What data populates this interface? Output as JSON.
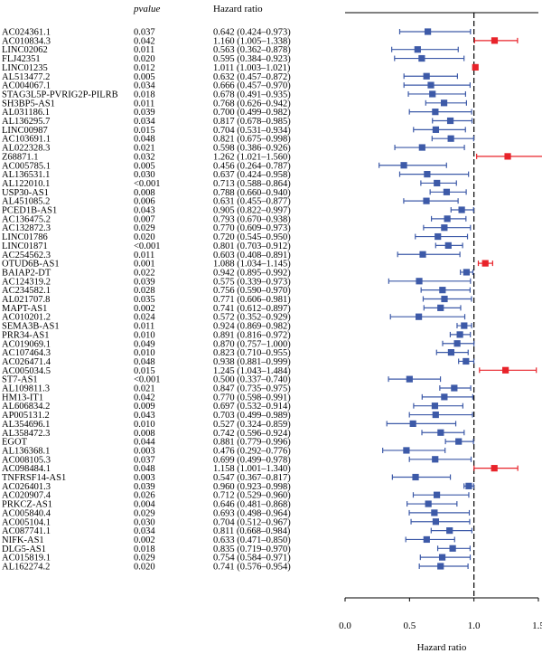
{
  "chart_data": {
    "type": "forest",
    "column_headers": {
      "pvalue": "pvalue",
      "hazard_ratio": "Hazard ratio"
    },
    "xlabel": "Hazard ratio",
    "xlim": [
      0.0,
      1.5
    ],
    "xticks": [
      "0.0",
      "0.5",
      "1.0",
      "1.5"
    ],
    "reference_line": 1.0,
    "colors": {
      "protective": "#3d5aa8",
      "risk": "#e8232a",
      "reference": "#000000"
    },
    "rows": [
      {
        "gene": "AC024361.1",
        "pvalue": "0.037",
        "hr_text": "0.642 (0.424–0.973)",
        "hr": 0.642,
        "low": 0.424,
        "high": 0.973
      },
      {
        "gene": "AC010834.3",
        "pvalue": "0.042",
        "hr_text": "1.160 (1.005–1.338)",
        "hr": 1.16,
        "low": 1.005,
        "high": 1.338
      },
      {
        "gene": "LINC02062",
        "pvalue": "0.011",
        "hr_text": "0.563 (0.362–0.878)",
        "hr": 0.563,
        "low": 0.362,
        "high": 0.878
      },
      {
        "gene": "FLJ42351",
        "pvalue": "0.020",
        "hr_text": "0.595 (0.384–0.923)",
        "hr": 0.595,
        "low": 0.384,
        "high": 0.923
      },
      {
        "gene": "LINC01235",
        "pvalue": "0.012",
        "hr_text": "1.011 (1.003–1.021)",
        "hr": 1.011,
        "low": 1.003,
        "high": 1.021
      },
      {
        "gene": "AL513477.2",
        "pvalue": "0.005",
        "hr_text": "0.632 (0.457–0.872)",
        "hr": 0.632,
        "low": 0.457,
        "high": 0.872
      },
      {
        "gene": "AC004067.1",
        "pvalue": "0.034",
        "hr_text": "0.666 (0.457–0.970)",
        "hr": 0.666,
        "low": 0.457,
        "high": 0.97
      },
      {
        "gene": "STAG3L5P-PVRIG2P-PILRB",
        "pvalue": "0.018",
        "hr_text": "0.678 (0.491–0.935)",
        "hr": 0.678,
        "low": 0.491,
        "high": 0.935
      },
      {
        "gene": "SH3BP5-AS1",
        "pvalue": "0.011",
        "hr_text": "0.768 (0.626–0.942)",
        "hr": 0.768,
        "low": 0.626,
        "high": 0.942
      },
      {
        "gene": "AL031186.1",
        "pvalue": "0.039",
        "hr_text": "0.700 (0.499–0.982)",
        "hr": 0.7,
        "low": 0.499,
        "high": 0.982
      },
      {
        "gene": "AL136295.7",
        "pvalue": "0.034",
        "hr_text": "0.817 (0.678–0.985)",
        "hr": 0.817,
        "low": 0.678,
        "high": 0.985
      },
      {
        "gene": "LINC00987",
        "pvalue": "0.015",
        "hr_text": "0.704 (0.531–0.934)",
        "hr": 0.704,
        "low": 0.531,
        "high": 0.934
      },
      {
        "gene": "AC103691.1",
        "pvalue": "0.048",
        "hr_text": "0.821 (0.675–0.998)",
        "hr": 0.821,
        "low": 0.675,
        "high": 0.998
      },
      {
        "gene": "AL022328.3",
        "pvalue": "0.021",
        "hr_text": "0.598 (0.386–0.926)",
        "hr": 0.598,
        "low": 0.386,
        "high": 0.926
      },
      {
        "gene": "Z68871.1",
        "pvalue": "0.032",
        "hr_text": "1.262 (1.021–1.560)",
        "hr": 1.262,
        "low": 1.021,
        "high": 1.56
      },
      {
        "gene": "AC005785.1",
        "pvalue": "0.005",
        "hr_text": "0.456 (0.264–0.787)",
        "hr": 0.456,
        "low": 0.264,
        "high": 0.787
      },
      {
        "gene": "AL136531.1",
        "pvalue": "0.030",
        "hr_text": "0.637 (0.424–0.958)",
        "hr": 0.637,
        "low": 0.424,
        "high": 0.958
      },
      {
        "gene": "AL122010.1",
        "pvalue": "<0.001",
        "hr_text": "0.713 (0.588–0.864)",
        "hr": 0.713,
        "low": 0.588,
        "high": 0.864
      },
      {
        "gene": "USP30-AS1",
        "pvalue": "0.008",
        "hr_text": "0.788 (0.660–0.940)",
        "hr": 0.788,
        "low": 0.66,
        "high": 0.94
      },
      {
        "gene": "AL451085.2",
        "pvalue": "0.006",
        "hr_text": "0.631 (0.455–0.877)",
        "hr": 0.631,
        "low": 0.455,
        "high": 0.877
      },
      {
        "gene": "PCED1B-AS1",
        "pvalue": "0.043",
        "hr_text": "0.905 (0.822–0.997)",
        "hr": 0.905,
        "low": 0.822,
        "high": 0.997
      },
      {
        "gene": "AC136475.2",
        "pvalue": "0.007",
        "hr_text": "0.793 (0.670–0.938)",
        "hr": 0.793,
        "low": 0.67,
        "high": 0.938
      },
      {
        "gene": "AC132872.3",
        "pvalue": "0.029",
        "hr_text": "0.770 (0.609–0.973)",
        "hr": 0.77,
        "low": 0.609,
        "high": 0.973
      },
      {
        "gene": "LINC01786",
        "pvalue": "0.020",
        "hr_text": "0.720 (0.545–0.950)",
        "hr": 0.72,
        "low": 0.545,
        "high": 0.95
      },
      {
        "gene": "LINC01871",
        "pvalue": "<0.001",
        "hr_text": "0.801 (0.703–0.912)",
        "hr": 0.801,
        "low": 0.703,
        "high": 0.912
      },
      {
        "gene": "AC254562.3",
        "pvalue": "0.011",
        "hr_text": "0.603 (0.408–0.891)",
        "hr": 0.603,
        "low": 0.408,
        "high": 0.891
      },
      {
        "gene": "OTUD6B-AS1",
        "pvalue": "0.001",
        "hr_text": "1.088 (1.034–1.145)",
        "hr": 1.088,
        "low": 1.034,
        "high": 1.145
      },
      {
        "gene": "BAIAP2-DT",
        "pvalue": "0.022",
        "hr_text": "0.942 (0.895–0.992)",
        "hr": 0.942,
        "low": 0.895,
        "high": 0.992
      },
      {
        "gene": "AC124319.2",
        "pvalue": "0.039",
        "hr_text": "0.575 (0.339–0.973)",
        "hr": 0.575,
        "low": 0.339,
        "high": 0.973
      },
      {
        "gene": "AC234582.1",
        "pvalue": "0.028",
        "hr_text": "0.756 (0.590–0.970)",
        "hr": 0.756,
        "low": 0.59,
        "high": 0.97
      },
      {
        "gene": "AL021707.8",
        "pvalue": "0.035",
        "hr_text": "0.771 (0.606–0.981)",
        "hr": 0.771,
        "low": 0.606,
        "high": 0.981
      },
      {
        "gene": "MAPT-AS1",
        "pvalue": "0.002",
        "hr_text": "0.741 (0.612–0.897)",
        "hr": 0.741,
        "low": 0.612,
        "high": 0.897
      },
      {
        "gene": "AC010201.2",
        "pvalue": "0.024",
        "hr_text": "0.572 (0.352–0.929)",
        "hr": 0.572,
        "low": 0.352,
        "high": 0.929
      },
      {
        "gene": "SEMA3B-AS1",
        "pvalue": "0.011",
        "hr_text": "0.924 (0.869–0.982)",
        "hr": 0.924,
        "low": 0.869,
        "high": 0.982
      },
      {
        "gene": "PRR34-AS1",
        "pvalue": "0.010",
        "hr_text": "0.891 (0.816–0.972)",
        "hr": 0.891,
        "low": 0.816,
        "high": 0.972
      },
      {
        "gene": "AC019069.1",
        "pvalue": "0.049",
        "hr_text": "0.870 (0.757–1.000)",
        "hr": 0.87,
        "low": 0.757,
        "high": 1.0
      },
      {
        "gene": "AC107464.3",
        "pvalue": "0.010",
        "hr_text": "0.823 (0.710–0.955)",
        "hr": 0.823,
        "low": 0.71,
        "high": 0.955
      },
      {
        "gene": "AC026471.4",
        "pvalue": "0.048",
        "hr_text": "0.938 (0.881–0.999)",
        "hr": 0.938,
        "low": 0.881,
        "high": 0.999
      },
      {
        "gene": "AC005034.5",
        "pvalue": "0.015",
        "hr_text": "1.245 (1.043–1.484)",
        "hr": 1.245,
        "low": 1.043,
        "high": 1.484
      },
      {
        "gene": "ST7-AS1",
        "pvalue": "<0.001",
        "hr_text": "0.500 (0.337–0.740)",
        "hr": 0.5,
        "low": 0.337,
        "high": 0.74
      },
      {
        "gene": "AL109811.3",
        "pvalue": "0.021",
        "hr_text": "0.847 (0.735–0.975)",
        "hr": 0.847,
        "low": 0.735,
        "high": 0.975
      },
      {
        "gene": "HM13-IT1",
        "pvalue": "0.042",
        "hr_text": "0.770 (0.598–0.991)",
        "hr": 0.77,
        "low": 0.598,
        "high": 0.991
      },
      {
        "gene": "AL606834.2",
        "pvalue": "0.009",
        "hr_text": "0.697 (0.532–0.914)",
        "hr": 0.697,
        "low": 0.532,
        "high": 0.914
      },
      {
        "gene": "AP005131.2",
        "pvalue": "0.043",
        "hr_text": "0.703 (0.499–0.989)",
        "hr": 0.703,
        "low": 0.499,
        "high": 0.989
      },
      {
        "gene": "AL354696.1",
        "pvalue": "0.010",
        "hr_text": "0.527 (0.324–0.859)",
        "hr": 0.527,
        "low": 0.324,
        "high": 0.859
      },
      {
        "gene": "AL358472.3",
        "pvalue": "0.008",
        "hr_text": "0.742 (0.596–0.924)",
        "hr": 0.742,
        "low": 0.596,
        "high": 0.924
      },
      {
        "gene": "EGOT",
        "pvalue": "0.044",
        "hr_text": "0.881 (0.779–0.996)",
        "hr": 0.881,
        "low": 0.779,
        "high": 0.996
      },
      {
        "gene": "AL136368.1",
        "pvalue": "0.003",
        "hr_text": "0.476 (0.292–0.776)",
        "hr": 0.476,
        "low": 0.292,
        "high": 0.776
      },
      {
        "gene": "AC008105.3",
        "pvalue": "0.037",
        "hr_text": "0.699 (0.499–0.978)",
        "hr": 0.699,
        "low": 0.499,
        "high": 0.978
      },
      {
        "gene": "AC098484.1",
        "pvalue": "0.048",
        "hr_text": "1.158 (1.001–1.340)",
        "hr": 1.158,
        "low": 1.001,
        "high": 1.34
      },
      {
        "gene": "TNFRSF14-AS1",
        "pvalue": "0.003",
        "hr_text": "0.547 (0.367–0.817)",
        "hr": 0.547,
        "low": 0.367,
        "high": 0.817
      },
      {
        "gene": "AC026401.3",
        "pvalue": "0.039",
        "hr_text": "0.960 (0.923–0.998)",
        "hr": 0.96,
        "low": 0.923,
        "high": 0.998
      },
      {
        "gene": "AC020907.4",
        "pvalue": "0.026",
        "hr_text": "0.712 (0.529–0.960)",
        "hr": 0.712,
        "low": 0.529,
        "high": 0.96
      },
      {
        "gene": "PRKCZ-AS1",
        "pvalue": "0.004",
        "hr_text": "0.646 (0.481–0.868)",
        "hr": 0.646,
        "low": 0.481,
        "high": 0.868
      },
      {
        "gene": "AC005840.4",
        "pvalue": "0.029",
        "hr_text": "0.693 (0.498–0.964)",
        "hr": 0.693,
        "low": 0.498,
        "high": 0.964
      },
      {
        "gene": "AC005104.1",
        "pvalue": "0.030",
        "hr_text": "0.704 (0.512–0.967)",
        "hr": 0.704,
        "low": 0.512,
        "high": 0.967
      },
      {
        "gene": "AC087741.1",
        "pvalue": "0.034",
        "hr_text": "0.811 (0.668–0.984)",
        "hr": 0.811,
        "low": 0.668,
        "high": 0.984
      },
      {
        "gene": "NIFK-AS1",
        "pvalue": "0.002",
        "hr_text": "0.633 (0.471–0.850)",
        "hr": 0.633,
        "low": 0.471,
        "high": 0.85
      },
      {
        "gene": "DLG5-AS1",
        "pvalue": "0.018",
        "hr_text": "0.835 (0.719–0.970)",
        "hr": 0.835,
        "low": 0.719,
        "high": 0.97
      },
      {
        "gene": "AC015819.1",
        "pvalue": "0.029",
        "hr_text": "0.754 (0.584–0.971)",
        "hr": 0.754,
        "low": 0.584,
        "high": 0.971
      },
      {
        "gene": "AL162274.2",
        "pvalue": "0.020",
        "hr_text": "0.741 (0.576–0.954)",
        "hr": 0.741,
        "low": 0.576,
        "high": 0.954
      }
    ]
  }
}
